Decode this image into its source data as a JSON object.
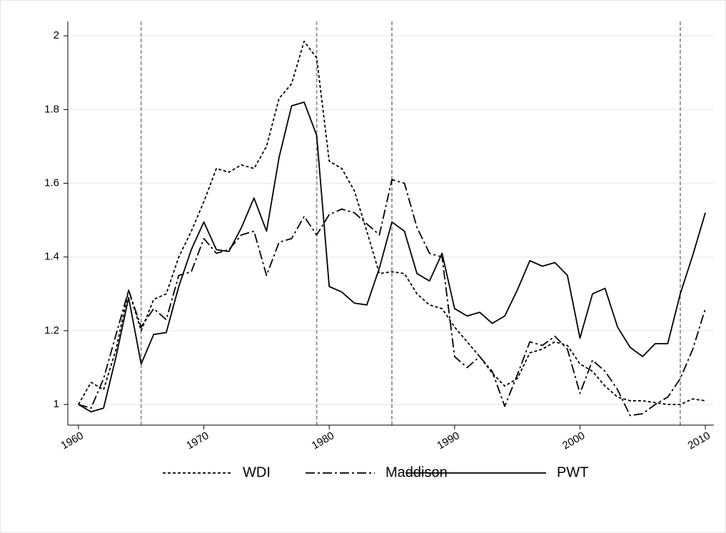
{
  "chart_data": {
    "type": "line",
    "x": [
      1960,
      1961,
      1962,
      1963,
      1964,
      1965,
      1966,
      1967,
      1968,
      1969,
      1970,
      1971,
      1972,
      1973,
      1974,
      1975,
      1976,
      1977,
      1978,
      1979,
      1980,
      1981,
      1982,
      1983,
      1984,
      1985,
      1986,
      1987,
      1988,
      1989,
      1990,
      1991,
      1992,
      1993,
      1994,
      1995,
      1996,
      1997,
      1998,
      1999,
      2000,
      2001,
      2002,
      2003,
      2004,
      2005,
      2006,
      2007,
      2008,
      2009,
      2010
    ],
    "series": [
      {
        "name": "WDI",
        "color": "#000000",
        "dash": "dotted",
        "values": [
          1.0,
          1.06,
          1.04,
          1.15,
          1.31,
          1.2,
          1.285,
          1.3,
          1.4,
          1.47,
          1.55,
          1.64,
          1.63,
          1.65,
          1.64,
          1.7,
          1.83,
          1.87,
          1.985,
          1.94,
          1.66,
          1.64,
          1.58,
          1.47,
          1.355,
          1.36,
          1.355,
          1.3,
          1.27,
          1.26,
          1.21,
          1.17,
          1.13,
          1.085,
          1.05,
          1.07,
          1.14,
          1.15,
          1.17,
          1.16,
          1.11,
          1.09,
          1.05,
          1.02,
          1.01,
          1.01,
          1.005,
          1.0,
          1.0,
          1.015,
          1.01
        ]
      },
      {
        "name": "Maddison",
        "color": "#000000",
        "dash": "dashdot",
        "values": [
          1.0,
          0.99,
          1.07,
          1.19,
          1.31,
          1.21,
          1.26,
          1.23,
          1.35,
          1.36,
          1.45,
          1.41,
          1.42,
          1.46,
          1.47,
          1.35,
          1.44,
          1.45,
          1.51,
          1.46,
          1.515,
          1.53,
          1.52,
          1.49,
          1.46,
          1.61,
          1.6,
          1.48,
          1.41,
          1.4,
          1.13,
          1.1,
          1.13,
          1.09,
          0.995,
          1.08,
          1.17,
          1.16,
          1.185,
          1.15,
          1.03,
          1.12,
          1.09,
          1.04,
          0.97,
          0.975,
          1.0,
          1.02,
          1.07,
          1.15,
          1.26
        ]
      },
      {
        "name": "PWT",
        "color": "#000000",
        "dash": "solid",
        "values": [
          1.0,
          0.98,
          0.99,
          1.13,
          1.29,
          1.11,
          1.19,
          1.195,
          1.32,
          1.42,
          1.495,
          1.42,
          1.415,
          1.48,
          1.56,
          1.47,
          1.67,
          1.81,
          1.82,
          1.73,
          1.32,
          1.305,
          1.275,
          1.27,
          1.37,
          1.495,
          1.47,
          1.355,
          1.335,
          1.41,
          1.26,
          1.24,
          1.25,
          1.22,
          1.24,
          1.31,
          1.39,
          1.375,
          1.385,
          1.35,
          1.18,
          1.3,
          1.315,
          1.21,
          1.155,
          1.13,
          1.165,
          1.165,
          1.3,
          1.405,
          1.52
        ]
      }
    ],
    "xlim": [
      1959.15,
      2010.68
    ],
    "xticks": [
      1960,
      1970,
      1980,
      1990,
      2000,
      2010
    ],
    "ylim": [
      0.944,
      2.039
    ],
    "yticks": [
      1,
      1.2,
      1.4,
      1.6,
      1.8,
      2
    ],
    "vlines": [
      1965,
      1979,
      1985,
      2008
    ],
    "grid": true,
    "legend": "bottom"
  }
}
